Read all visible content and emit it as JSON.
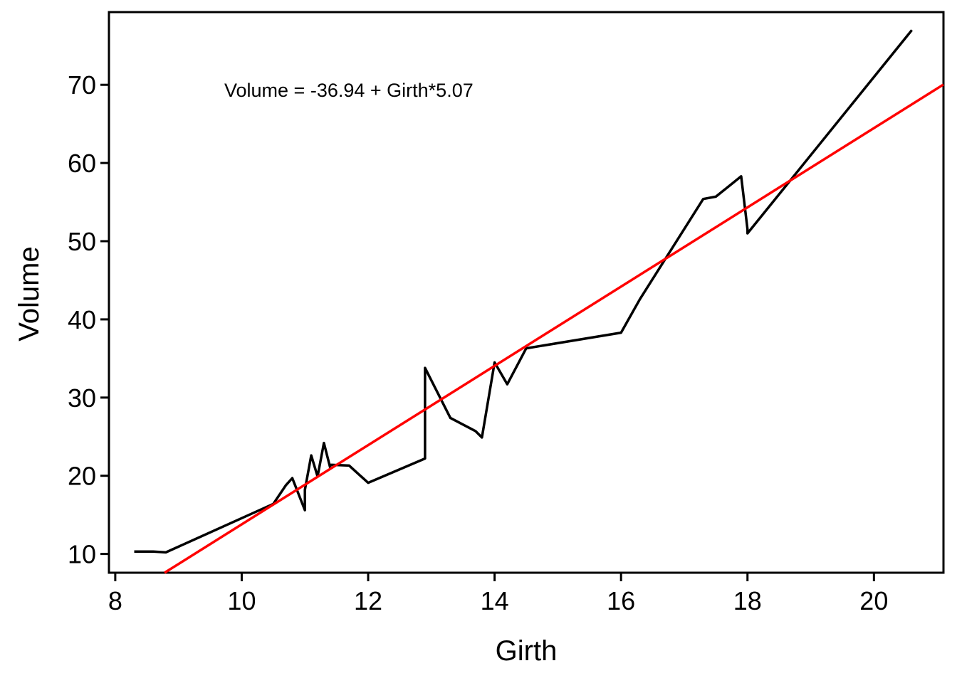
{
  "chart_data": {
    "type": "line",
    "title": "",
    "xlabel": "Girth",
    "ylabel": "Volume",
    "xlim": [
      7.9,
      21.1
    ],
    "ylim": [
      7.6,
      79.3
    ],
    "xticks": [
      8,
      10,
      12,
      14,
      16,
      18,
      20
    ],
    "yticks": [
      10,
      20,
      30,
      40,
      50,
      60,
      70
    ],
    "grid": false,
    "legend": "none",
    "annotation": "Volume = -36.94 + Girth*5.07",
    "series": [
      {
        "color": "#000000",
        "x": [
          8.3,
          8.6,
          8.8,
          10.5,
          10.7,
          10.8,
          11.0,
          11.0,
          11.1,
          11.2,
          11.3,
          11.4,
          11.4,
          11.7,
          12.0,
          12.9,
          12.9,
          13.3,
          13.7,
          13.8,
          14.0,
          14.2,
          14.5,
          16.0,
          16.3,
          17.3,
          17.5,
          17.9,
          18.0,
          18.0,
          20.6
        ],
        "y": [
          10.3,
          10.3,
          10.2,
          16.4,
          18.8,
          19.7,
          15.6,
          18.2,
          22.6,
          19.9,
          24.2,
          21.0,
          21.4,
          21.3,
          19.1,
          22.2,
          33.8,
          27.4,
          25.7,
          24.9,
          34.5,
          31.7,
          36.3,
          38.3,
          42.6,
          55.4,
          55.7,
          58.3,
          51.5,
          51.0,
          77.0
        ]
      },
      {
        "color": "#ff0000",
        "x": [
          8.78,
          21.1
        ],
        "y": [
          7.6,
          70.04
        ]
      }
    ]
  }
}
